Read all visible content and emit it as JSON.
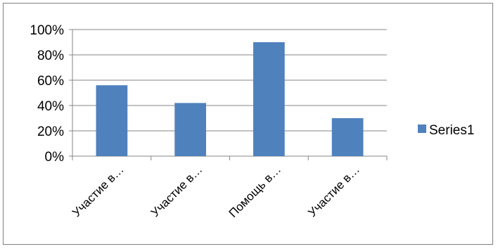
{
  "chart_data": {
    "type": "bar",
    "categories": [
      "Участие в…",
      "Участие в…",
      "Помощь в…",
      "Участие в…"
    ],
    "series": [
      {
        "name": "Series1",
        "values": [
          0.56,
          0.42,
          0.9,
          0.3
        ],
        "color": "#4f81bd"
      }
    ],
    "y_ticks": [
      "0%",
      "20%",
      "40%",
      "60%",
      "80%",
      "100%"
    ],
    "ylim": [
      0,
      1
    ],
    "title": "",
    "xlabel": "",
    "ylabel": "",
    "grid": true,
    "legend_position": "right"
  }
}
